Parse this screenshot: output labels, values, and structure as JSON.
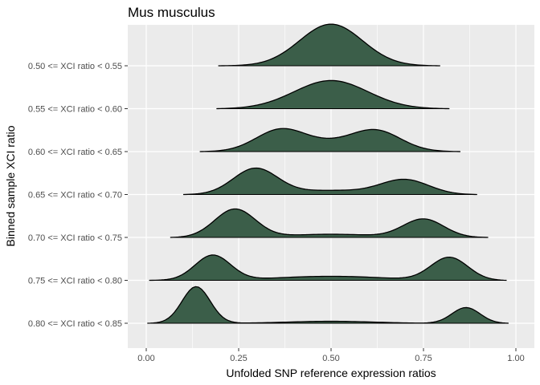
{
  "chart_data": {
    "type": "ridgeline",
    "title": "Mus musculus",
    "xlabel": "Unfolded SNP reference expression ratios",
    "ylabel": "Binned sample XCI ratio",
    "xlim": [
      -0.05,
      1.05
    ],
    "x_ticks": [
      "0.00",
      "0.25",
      "0.50",
      "0.75",
      "1.00"
    ],
    "x_tick_values": [
      0,
      0.25,
      0.5,
      0.75,
      1.0
    ],
    "categories": [
      "0.50 <= XCI ratio < 0.55",
      "0.55 <= XCI ratio < 0.60",
      "0.60 <= XCI ratio < 0.65",
      "0.65 <= XCI ratio < 0.70",
      "0.70 <= XCI ratio < 0.75",
      "0.75 <= XCI ratio < 0.80",
      "0.80 <= XCI ratio < 0.85"
    ],
    "ridges": [
      {
        "category": "0.50 <= XCI ratio < 0.55",
        "range": [
          0.195,
          0.795
        ],
        "peaks": [
          {
            "mu": 0.5,
            "sigma": 0.085,
            "h": 1.0
          }
        ]
      },
      {
        "category": "0.55 <= XCI ratio < 0.60",
        "range": [
          0.19,
          0.82
        ],
        "peaks": [
          {
            "mu": 0.5,
            "sigma": 0.1,
            "h": 0.68
          }
        ]
      },
      {
        "category": "0.60 <= XCI ratio < 0.65",
        "range": [
          0.145,
          0.85
        ],
        "peaks": [
          {
            "mu": 0.36,
            "sigma": 0.065,
            "h": 0.44
          },
          {
            "mu": 0.625,
            "sigma": 0.065,
            "h": 0.4
          },
          {
            "mu": 0.5,
            "sigma": 0.12,
            "h": 0.22
          }
        ]
      },
      {
        "category": "0.65 <= XCI ratio < 0.70",
        "range": [
          0.1,
          0.895
        ],
        "peaks": [
          {
            "mu": 0.295,
            "sigma": 0.06,
            "h": 0.62
          },
          {
            "mu": 0.7,
            "sigma": 0.065,
            "h": 0.35
          },
          {
            "mu": 0.5,
            "sigma": 0.11,
            "h": 0.1
          }
        ]
      },
      {
        "category": "0.70 <= XCI ratio < 0.75",
        "range": [
          0.065,
          0.925
        ],
        "peaks": [
          {
            "mu": 0.24,
            "sigma": 0.055,
            "h": 0.68
          },
          {
            "mu": 0.75,
            "sigma": 0.055,
            "h": 0.44
          },
          {
            "mu": 0.5,
            "sigma": 0.12,
            "h": 0.08
          }
        ]
      },
      {
        "category": "0.75 <= XCI ratio < 0.80",
        "range": [
          0.008,
          0.975
        ],
        "peaks": [
          {
            "mu": 0.18,
            "sigma": 0.048,
            "h": 0.6
          },
          {
            "mu": 0.82,
            "sigma": 0.05,
            "h": 0.55
          },
          {
            "mu": 0.5,
            "sigma": 0.15,
            "h": 0.1
          }
        ]
      },
      {
        "category": "0.80 <= XCI ratio < 0.85",
        "range": [
          0.003,
          0.98
        ],
        "peaks": [
          {
            "mu": 0.135,
            "sigma": 0.038,
            "h": 0.88
          },
          {
            "mu": 0.865,
            "sigma": 0.038,
            "h": 0.38
          },
          {
            "mu": 0.5,
            "sigma": 0.12,
            "h": 0.05
          }
        ]
      }
    ],
    "fill_color": "#3b5e49",
    "line_color": "#000000",
    "panel_background": "#ebebeb",
    "grid_color": "#ffffff",
    "grid": true,
    "legend": "none"
  }
}
